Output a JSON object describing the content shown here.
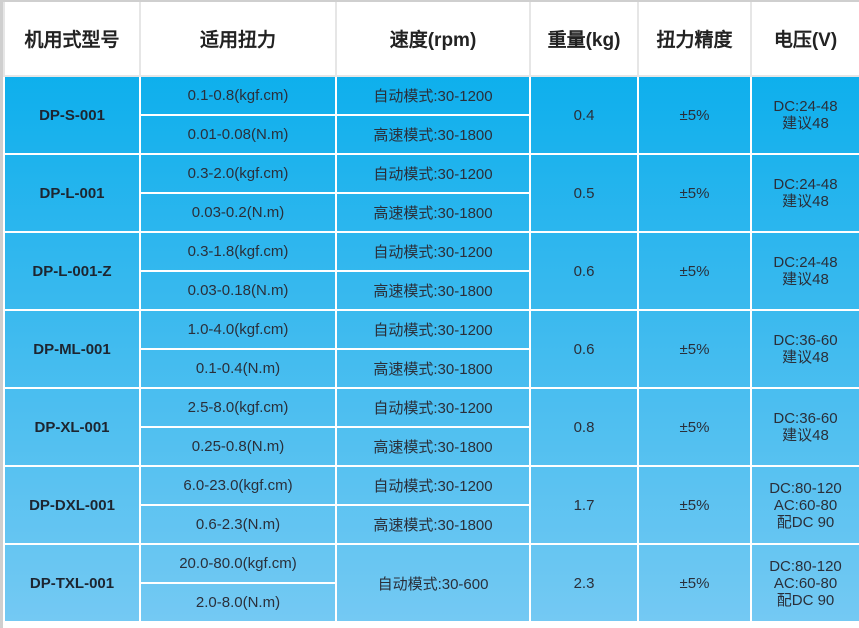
{
  "headers": [
    "机用式型号",
    "适用扭力",
    "速度(rpm)",
    "重量(kg)",
    "扭力精度",
    "电压(V)"
  ],
  "rows": [
    {
      "model": "DP-S-001",
      "torque_kgf": "0.1-0.8(kgf.cm)",
      "torque_nm": "0.01-0.08(N.m)",
      "speed_auto": "自动模式:30-1200",
      "speed_high": "高速模式:30-1800",
      "weight": "0.4",
      "accuracy": "±5%",
      "voltage": [
        "DC:24-48",
        "建议48"
      ]
    },
    {
      "model": "DP-L-001",
      "torque_kgf": "0.3-2.0(kgf.cm)",
      "torque_nm": "0.03-0.2(N.m)",
      "speed_auto": "自动模式:30-1200",
      "speed_high": "高速模式:30-1800",
      "weight": "0.5",
      "accuracy": "±5%",
      "voltage": [
        "DC:24-48",
        "建议48"
      ]
    },
    {
      "model": "DP-L-001-Z",
      "torque_kgf": "0.3-1.8(kgf.cm)",
      "torque_nm": "0.03-0.18(N.m)",
      "speed_auto": "自动模式:30-1200",
      "speed_high": "高速模式:30-1800",
      "weight": "0.6",
      "accuracy": "±5%",
      "voltage": [
        "DC:24-48",
        "建议48"
      ]
    },
    {
      "model": "DP-ML-001",
      "torque_kgf": "1.0-4.0(kgf.cm)",
      "torque_nm": "0.1-0.4(N.m)",
      "speed_auto": "自动模式:30-1200",
      "speed_high": "高速模式:30-1800",
      "weight": "0.6",
      "accuracy": "±5%",
      "voltage": [
        "DC:36-60",
        "建议48"
      ]
    },
    {
      "model": "DP-XL-001",
      "torque_kgf": "2.5-8.0(kgf.cm)",
      "torque_nm": "0.25-0.8(N.m)",
      "speed_auto": "自动模式:30-1200",
      "speed_high": "高速模式:30-1800",
      "weight": "0.8",
      "accuracy": "±5%",
      "voltage": [
        "DC:36-60",
        "建议48"
      ]
    },
    {
      "model": "DP-DXL-001",
      "torque_kgf": "6.0-23.0(kgf.cm)",
      "torque_nm": "0.6-2.3(N.m)",
      "speed_auto": "自动模式:30-1200",
      "speed_high": "高速模式:30-1800",
      "weight": "1.7",
      "accuracy": "±5%",
      "voltage": [
        "DC:80-120",
        "AC:60-80",
        "配DC 90"
      ]
    },
    {
      "model": "DP-TXL-001",
      "torque_kgf": "20.0-80.0(kgf.cm)",
      "torque_nm": "2.0-8.0(N.m)",
      "speed_auto": "自动模式:30-600",
      "weight": "2.3",
      "accuracy": "±5%",
      "voltage": [
        "DC:80-120",
        "AC:60-80",
        "配DC 90"
      ]
    }
  ]
}
